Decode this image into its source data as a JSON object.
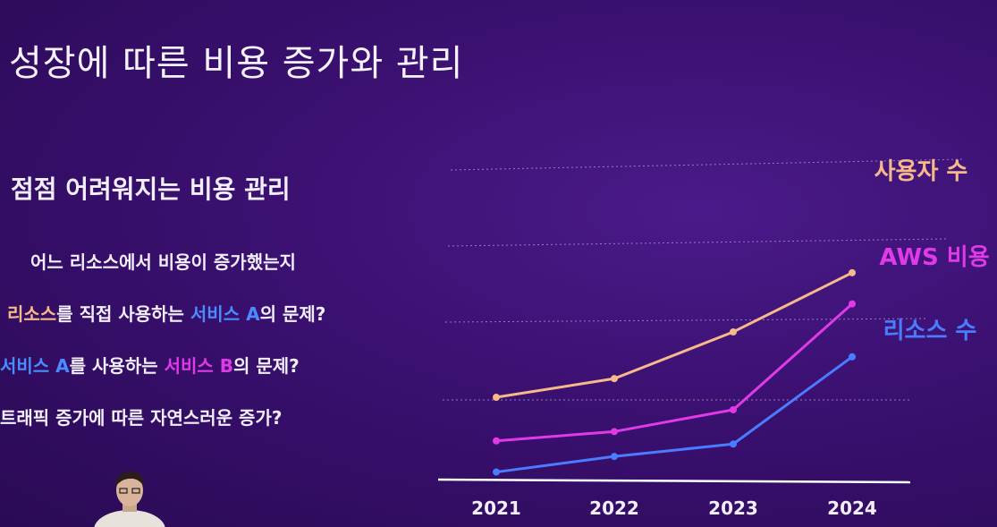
{
  "slide": {
    "title": "성장에 따른 비용 증가와 관리",
    "subtitle": "점점 어려워지는 비용 관리"
  },
  "bullets": [
    [
      {
        "text": "어느 리소스에서 비용이 증가했는지",
        "color": ""
      }
    ],
    [
      {
        "text": "리소스",
        "color": "orange"
      },
      {
        "text": "를 직접 사용하는 ",
        "color": ""
      },
      {
        "text": "서비스 A",
        "color": "blue"
      },
      {
        "text": "의 문제?",
        "color": ""
      }
    ],
    [
      {
        "text": "서비스 A",
        "color": "blue"
      },
      {
        "text": "를 사용하는 ",
        "color": ""
      },
      {
        "text": "서비스 B",
        "color": "magenta"
      },
      {
        "text": "의 문제?",
        "color": ""
      }
    ],
    [
      {
        "text": "트래픽 증가에 따른 자연스러운 증가?",
        "color": ""
      }
    ]
  ],
  "colors": {
    "orange": "#f7b98a",
    "magenta": "#e03ae8",
    "blue": "#4a7cff",
    "axis": "#ffffff",
    "grid": "#b9a6dd"
  },
  "chart_data": {
    "type": "line",
    "categories": [
      "2021",
      "2022",
      "2023",
      "2024"
    ],
    "ylim": [
      0,
      100
    ],
    "grid": true,
    "series": [
      {
        "name": "사용자 수",
        "color_key": "orange",
        "values": [
          27,
          33,
          48,
          67
        ]
      },
      {
        "name": "AWS 비용",
        "color_key": "magenta",
        "values": [
          13,
          16,
          23,
          57
        ]
      },
      {
        "name": "리소스 수",
        "color_key": "blue",
        "values": [
          3,
          8,
          12,
          40
        ]
      }
    ]
  }
}
